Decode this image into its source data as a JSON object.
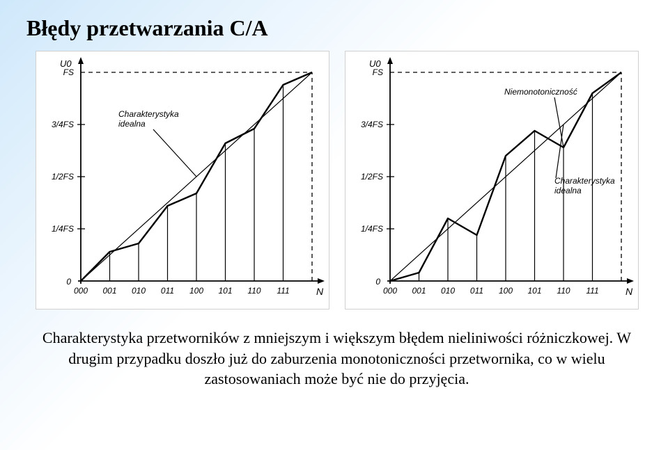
{
  "title": "Błędy przetwarzania C/A",
  "caption": "Charakterystyka przetworników z mniejszym i większym błędem nieliniwości różniczkowej. W drugim przypadku doszło już do zaburzenia monotoniczności przetwornika, co w wielu zastosowaniach może być nie do przyjęcia.",
  "axes": {
    "y_label": "U0",
    "x_label": "N",
    "y_ticks_labels": [
      "0",
      "1/4FS",
      "1/2FS",
      "3/4FS",
      "FS"
    ],
    "x_ticks_labels": [
      "000",
      "001",
      "010",
      "011",
      "100",
      "101",
      "110",
      "111"
    ],
    "ideal_label_l1": "Charakterystyka",
    "ideal_label_l2": "idealna",
    "nonmono_label": "Niemonotoniczność"
  },
  "style": {
    "axis_font_px": 12,
    "line_color": "#000000",
    "ideal_width": 1.2,
    "curve_width": 2.4,
    "background": "#ffffff"
  },
  "chart_left": {
    "type": "line",
    "ylim": [
      0,
      1.0
    ],
    "xlim": [
      0,
      8
    ],
    "xticks": [
      0,
      1,
      2,
      3,
      4,
      5,
      6,
      7
    ],
    "yticks": [
      0,
      0.25,
      0.5,
      0.75,
      1.0
    ],
    "ideal_line_endpoints": [
      [
        0,
        0
      ],
      [
        8,
        1.0
      ]
    ],
    "curve": [
      [
        0,
        0.0
      ],
      [
        1,
        0.14
      ],
      [
        2,
        0.18
      ],
      [
        3,
        0.36
      ],
      [
        4,
        0.42
      ],
      [
        5,
        0.66
      ],
      [
        6,
        0.73
      ],
      [
        7,
        0.94
      ],
      [
        8,
        1.0
      ]
    ],
    "annotation": {
      "label": "Charakterystyka idealna",
      "line_to": [
        4,
        0.5
      ]
    }
  },
  "chart_right": {
    "type": "line",
    "ylim": [
      0,
      1.0
    ],
    "xlim": [
      0,
      8
    ],
    "xticks": [
      0,
      1,
      2,
      3,
      4,
      5,
      6,
      7
    ],
    "yticks": [
      0,
      0.25,
      0.5,
      0.75,
      1.0
    ],
    "ideal_line_endpoints": [
      [
        0,
        0
      ],
      [
        8,
        1.0
      ]
    ],
    "curve": [
      [
        0,
        0.0
      ],
      [
        1,
        0.04
      ],
      [
        2,
        0.3
      ],
      [
        3,
        0.22
      ],
      [
        4,
        0.6
      ],
      [
        5,
        0.72
      ],
      [
        6,
        0.64
      ],
      [
        7,
        0.9
      ],
      [
        8,
        1.0
      ]
    ],
    "annotations": [
      {
        "label": "Niemonotoniczność",
        "line_to": [
          6,
          0.64
        ]
      },
      {
        "label": "Charakterystyka idealna",
        "line_to": [
          6,
          0.75
        ]
      }
    ]
  }
}
